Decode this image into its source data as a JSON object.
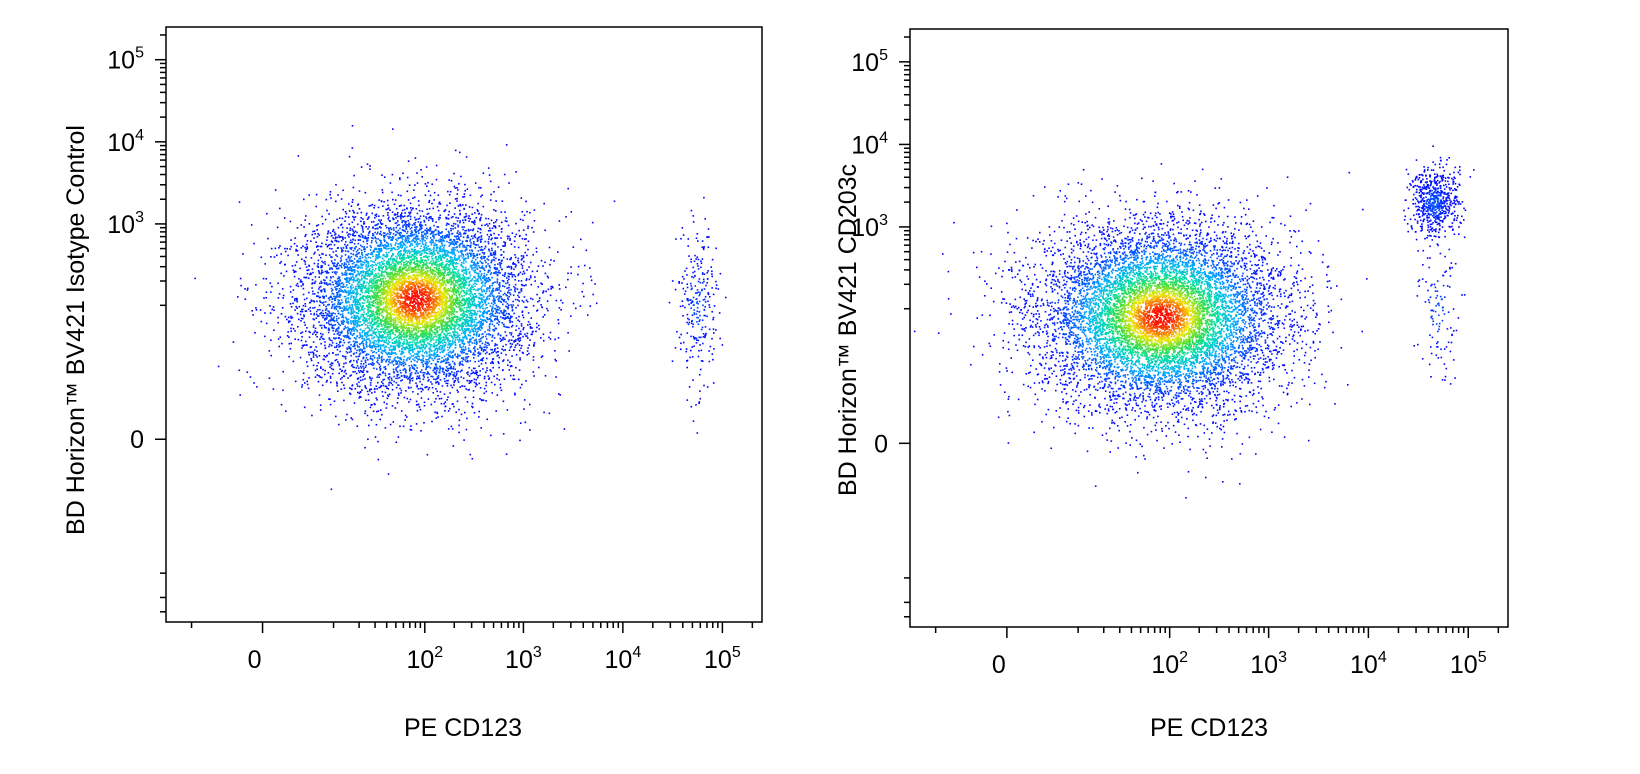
{
  "chart_data": [
    {
      "type": "scatter",
      "title": "",
      "xlabel": "PE CD123",
      "ylabel": "BD Horizon™ BV421 Isotype Control",
      "x_scale": "biexponential",
      "y_scale": "biexponential",
      "xlim": [
        -20,
        250000
      ],
      "ylim": [
        -400,
        250000
      ],
      "x_ticks": [
        {
          "value": 0,
          "base": "0",
          "exp": ""
        },
        {
          "value": 100,
          "base": "10",
          "exp": "2"
        },
        {
          "value": 1000,
          "base": "10",
          "exp": "3"
        },
        {
          "value": 10000,
          "base": "10",
          "exp": "4"
        },
        {
          "value": 100000,
          "base": "10",
          "exp": "5"
        }
      ],
      "y_ticks": [
        {
          "value": 0,
          "base": "0",
          "exp": ""
        },
        {
          "value": 1000,
          "base": "10",
          "exp": "3"
        },
        {
          "value": 10000,
          "base": "10",
          "exp": "4"
        },
        {
          "value": 100000,
          "base": "10",
          "exp": "5"
        }
      ],
      "coloring": "density (blue-cyan-green-yellow-red)",
      "populations": [
        {
          "name": "",
          "x_center": 80,
          "y_center": 120,
          "x_spread": 0.55,
          "y_spread": 0.55,
          "count": 9000
        },
        {
          "name": "",
          "x_center": 55000,
          "y_center": 100,
          "x_spread": 0.1,
          "y_spread": 0.5,
          "count": 260
        }
      ]
    },
    {
      "type": "scatter",
      "title": "",
      "xlabel": "PE CD123",
      "ylabel": "BD Horizon™ BV421 CD203c",
      "x_scale": "biexponential",
      "y_scale": "biexponential",
      "xlim": [
        -20,
        250000
      ],
      "ylim": [
        -400,
        250000
      ],
      "x_ticks": [
        {
          "value": 0,
          "base": "0",
          "exp": ""
        },
        {
          "value": 100,
          "base": "10",
          "exp": "2"
        },
        {
          "value": 1000,
          "base": "10",
          "exp": "3"
        },
        {
          "value": 10000,
          "base": "10",
          "exp": "4"
        },
        {
          "value": 100000,
          "base": "10",
          "exp": "5"
        }
      ],
      "y_ticks": [
        {
          "value": 0,
          "base": "0",
          "exp": ""
        },
        {
          "value": 1000,
          "base": "10",
          "exp": "3"
        },
        {
          "value": 10000,
          "base": "10",
          "exp": "4"
        },
        {
          "value": 100000,
          "base": "10",
          "exp": "5"
        }
      ],
      "coloring": "density (blue-cyan-green-yellow-red)",
      "populations": [
        {
          "name": "",
          "x_center": 80,
          "y_center": 80,
          "x_spread": 0.6,
          "y_spread": 0.55,
          "count": 9000
        },
        {
          "name": "",
          "x_center": 45000,
          "y_center": 2000,
          "x_spread": 0.12,
          "y_spread": 0.22,
          "count": 620
        },
        {
          "name": "",
          "x_center": 50000,
          "y_center": 100,
          "x_spread": 0.1,
          "y_spread": 0.4,
          "count": 110
        }
      ]
    }
  ]
}
